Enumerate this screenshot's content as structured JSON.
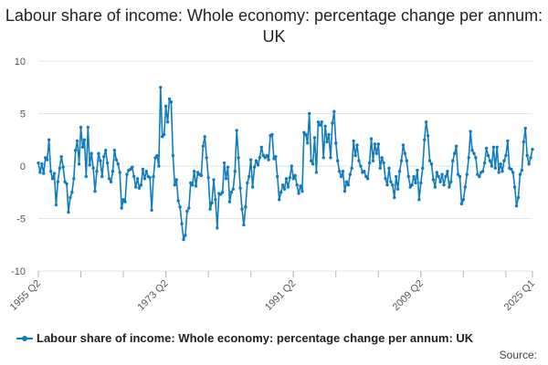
{
  "title": "Labour share of income: Whole economy: percentage change per annum: UK",
  "source_label": "Source:",
  "colors": {
    "series": "#0f7cbf",
    "grid": "#e4e4e4",
    "axis": "#555555"
  },
  "chart_data": {
    "type": "line",
    "title": "Labour share of income: Whole economy: percentage change per annum: UK",
    "xlabel": "",
    "ylabel": "",
    "ylim": [
      -10,
      10
    ],
    "yticks": [
      -10,
      -5,
      0,
      5,
      10
    ],
    "xlim": [
      "1955 Q2",
      "2025 Q1"
    ],
    "xticks": [
      "1955 Q2",
      "1973 Q2",
      "1991 Q2",
      "2009 Q2",
      "2025 Q1"
    ],
    "grid": true,
    "legend_position": "bottom",
    "series": [
      {
        "name": "Labour share of income: Whole economy: percentage change per annum: UK",
        "values_note": "quarterly values approximated from the chart",
        "points": [
          [
            "1955 Q2",
            0.3
          ],
          [
            "1955 Q3",
            -0.6
          ],
          [
            "1955 Q4",
            0.2
          ],
          [
            "1956 Q1",
            -0.7
          ],
          [
            "1956 Q2",
            0.8
          ],
          [
            "1956 Q3",
            0.6
          ],
          [
            "1956 Q4",
            2.5
          ],
          [
            "1957 Q1",
            -0.5
          ],
          [
            "1957 Q2",
            -1.2
          ],
          [
            "1957 Q3",
            -0.7
          ],
          [
            "1957 Q4",
            -3.7
          ],
          [
            "1958 Q1",
            -1.5
          ],
          [
            "1958 Q2",
            -0.2
          ],
          [
            "1958 Q3",
            0.9
          ],
          [
            "1958 Q4",
            -0.1
          ],
          [
            "1959 Q1",
            -1.5
          ],
          [
            "1959 Q2",
            -1.7
          ],
          [
            "1959 Q3",
            -4.4
          ],
          [
            "1959 Q4",
            -3.0
          ],
          [
            "1960 Q1",
            -2.5
          ],
          [
            "1960 Q2",
            -1.2
          ],
          [
            "1960 Q3",
            1.5
          ],
          [
            "1960 Q4",
            2.4
          ],
          [
            "1961 Q1",
            0.2
          ],
          [
            "1961 Q2",
            3.7
          ],
          [
            "1961 Q3",
            1.8
          ],
          [
            "1961 Q4",
            2.5
          ],
          [
            "1962 Q1",
            -1.0
          ],
          [
            "1962 Q2",
            3.7
          ],
          [
            "1962 Q3",
            0.1
          ],
          [
            "1962 Q4",
            1.2
          ],
          [
            "1963 Q1",
            -0.2
          ],
          [
            "1963 Q2",
            -2.4
          ],
          [
            "1963 Q3",
            -0.5
          ],
          [
            "1963 Q4",
            1.2
          ],
          [
            "1964 Q1",
            0.5
          ],
          [
            "1964 Q2",
            -1.0
          ],
          [
            "1964 Q3",
            0.9
          ],
          [
            "1964 Q4",
            1.5
          ],
          [
            "1965 Q1",
            0.3
          ],
          [
            "1965 Q2",
            -1.2
          ],
          [
            "1965 Q3",
            -1.5
          ],
          [
            "1965 Q4",
            -0.5
          ],
          [
            "1966 Q1",
            1.5
          ],
          [
            "1966 Q2",
            0.6
          ],
          [
            "1966 Q3",
            0.2
          ],
          [
            "1966 Q4",
            -0.6
          ],
          [
            "1967 Q1",
            -4.0
          ],
          [
            "1967 Q2",
            -3.2
          ],
          [
            "1967 Q3",
            -3.4
          ],
          [
            "1967 Q4",
            -0.8
          ],
          [
            "1968 Q1",
            -0.4
          ],
          [
            "1968 Q2",
            -0.3
          ],
          [
            "1968 Q3",
            -0.1
          ],
          [
            "1968 Q4",
            -1.0
          ],
          [
            "1969 Q1",
            -2.0
          ],
          [
            "1969 Q2",
            -1.2
          ],
          [
            "1969 Q3",
            -2.1
          ],
          [
            "1969 Q4",
            -1.8
          ],
          [
            "1970 Q1",
            -0.3
          ],
          [
            "1970 Q2",
            -1.2
          ],
          [
            "1970 Q3",
            -0.5
          ],
          [
            "1970 Q4",
            -1.0
          ],
          [
            "1971 Q1",
            -1.1
          ],
          [
            "1971 Q2",
            -4.2
          ],
          [
            "1971 Q3",
            -1.0
          ],
          [
            "1971 Q4",
            0.8
          ],
          [
            "1972 Q1",
            1.0
          ],
          [
            "1972 Q2",
            0.0
          ],
          [
            "1972 Q3",
            7.5
          ],
          [
            "1972 Q4",
            2.8
          ],
          [
            "1973 Q1",
            3.0
          ],
          [
            "1973 Q2",
            5.7
          ],
          [
            "1973 Q3",
            4.2
          ],
          [
            "1973 Q4",
            6.4
          ],
          [
            "1974 Q1",
            6.1
          ],
          [
            "1974 Q2",
            1.0
          ],
          [
            "1974 Q3",
            -1.8
          ],
          [
            "1974 Q4",
            -1.3
          ],
          [
            "1975 Q1",
            -3.3
          ],
          [
            "1975 Q2",
            -3.9
          ],
          [
            "1975 Q3",
            -5.5
          ],
          [
            "1975 Q4",
            -7.0
          ],
          [
            "1976 Q1",
            -6.6
          ],
          [
            "1976 Q2",
            -4.3
          ],
          [
            "1976 Q3",
            -4.0
          ],
          [
            "1976 Q4",
            -1.6
          ],
          [
            "1977 Q1",
            -1.8
          ],
          [
            "1977 Q2",
            -0.5
          ],
          [
            "1977 Q3",
            -1.9
          ],
          [
            "1977 Q4",
            -0.6
          ],
          [
            "1978 Q1",
            -0.8
          ],
          [
            "1978 Q2",
            -0.9
          ],
          [
            "1978 Q3",
            1.9
          ],
          [
            "1978 Q4",
            2.8
          ],
          [
            "1979 Q1",
            0.8
          ],
          [
            "1979 Q2",
            -1.1
          ],
          [
            "1979 Q3",
            -4.1
          ],
          [
            "1979 Q4",
            -3.5
          ],
          [
            "1980 Q1",
            -1.3
          ],
          [
            "1980 Q2",
            -3.2
          ],
          [
            "1980 Q3",
            -5.9
          ],
          [
            "1980 Q4",
            -2.6
          ],
          [
            "1981 Q1",
            -2.7
          ],
          [
            "1981 Q2",
            -2.5
          ],
          [
            "1981 Q3",
            0.3
          ],
          [
            "1981 Q4",
            -1.2
          ],
          [
            "1982 Q1",
            -0.1
          ],
          [
            "1982 Q2",
            -3.4
          ],
          [
            "1982 Q3",
            -2.5
          ],
          [
            "1982 Q4",
            -2.2
          ],
          [
            "1983 Q1",
            -0.5
          ],
          [
            "1983 Q2",
            3.4
          ],
          [
            "1983 Q3",
            0.8
          ],
          [
            "1983 Q4",
            -2.1
          ],
          [
            "1984 Q1",
            -4.1
          ],
          [
            "1984 Q2",
            -5.6
          ],
          [
            "1984 Q3",
            -3.9
          ],
          [
            "1984 Q4",
            -1.6
          ],
          [
            "1985 Q1",
            -1.0
          ],
          [
            "1985 Q2",
            0.6
          ],
          [
            "1985 Q3",
            -2.0
          ],
          [
            "1985 Q4",
            -0.1
          ],
          [
            "1986 Q1",
            0.5
          ],
          [
            "1986 Q2",
            0.1
          ],
          [
            "1986 Q3",
            0.8
          ],
          [
            "1986 Q4",
            1.8
          ],
          [
            "1987 Q1",
            1.0
          ],
          [
            "1987 Q2",
            0.8
          ],
          [
            "1987 Q3",
            1.0
          ],
          [
            "1987 Q4",
            0.6
          ],
          [
            "1988 Q1",
            2.9
          ],
          [
            "1988 Q2",
            3.0
          ],
          [
            "1988 Q3",
            0.7
          ],
          [
            "1988 Q4",
            0.9
          ],
          [
            "1989 Q1",
            -1.0
          ],
          [
            "1989 Q2",
            -3.2
          ],
          [
            "1989 Q3",
            -2.5
          ],
          [
            "1989 Q4",
            -1.8
          ],
          [
            "1990 Q1",
            -2.2
          ],
          [
            "1990 Q2",
            -1.2
          ],
          [
            "1990 Q3",
            -2.0
          ],
          [
            "1990 Q4",
            -1.1
          ],
          [
            "1991 Q1",
            0.0
          ],
          [
            "1991 Q2",
            -1.2
          ],
          [
            "1991 Q3",
            -0.9
          ],
          [
            "1991 Q4",
            -1.8
          ],
          [
            "1992 Q1",
            -2.6
          ],
          [
            "1992 Q2",
            -1.9
          ],
          [
            "1992 Q3",
            -2.4
          ],
          [
            "1992 Q4",
            3.2
          ],
          [
            "1993 Q1",
            3.0
          ],
          [
            "1993 Q2",
            2.2
          ],
          [
            "1993 Q3",
            5.0
          ],
          [
            "1993 Q4",
            0.5
          ],
          [
            "1994 Q1",
            0.2
          ],
          [
            "1994 Q2",
            2.7
          ],
          [
            "1994 Q3",
            -0.6
          ],
          [
            "1994 Q4",
            4.2
          ],
          [
            "1995 Q1",
            3.9
          ],
          [
            "1995 Q2",
            4.2
          ],
          [
            "1995 Q3",
            0.8
          ],
          [
            "1995 Q4",
            3.8
          ],
          [
            "1996 Q1",
            2.3
          ],
          [
            "1996 Q2",
            3.0
          ],
          [
            "1996 Q3",
            0.8
          ],
          [
            "1996 Q4",
            4.1
          ],
          [
            "1997 Q1",
            5.2
          ],
          [
            "1997 Q2",
            2.2
          ],
          [
            "1997 Q3",
            0.5
          ],
          [
            "1997 Q4",
            -0.5
          ],
          [
            "1998 Q1",
            -1.0
          ],
          [
            "1998 Q2",
            -0.5
          ],
          [
            "1998 Q3",
            -2.4
          ],
          [
            "1998 Q4",
            -1.5
          ],
          [
            "1999 Q1",
            -1.8
          ],
          [
            "1999 Q2",
            -0.8
          ],
          [
            "1999 Q3",
            -0.2
          ],
          [
            "1999 Q4",
            2.4
          ],
          [
            "2000 Q1",
            1.0
          ],
          [
            "2000 Q2",
            2.0
          ],
          [
            "2000 Q3",
            0.5
          ],
          [
            "2000 Q4",
            0.0
          ],
          [
            "2001 Q1",
            -0.6
          ],
          [
            "2001 Q2",
            -0.5
          ],
          [
            "2001 Q3",
            -1.0
          ],
          [
            "2001 Q4",
            -1.2
          ],
          [
            "2002 Q1",
            0.3
          ],
          [
            "2002 Q2",
            2.6
          ],
          [
            "2002 Q3",
            0.5
          ],
          [
            "2002 Q4",
            2.1
          ],
          [
            "2003 Q1",
            1.2
          ],
          [
            "2003 Q2",
            2.1
          ],
          [
            "2003 Q3",
            -0.2
          ],
          [
            "2003 Q4",
            0.8
          ],
          [
            "2004 Q1",
            0.3
          ],
          [
            "2004 Q2",
            -1.2
          ],
          [
            "2004 Q3",
            -1.8
          ],
          [
            "2004 Q4",
            -0.2
          ],
          [
            "2005 Q1",
            -1.5
          ],
          [
            "2005 Q2",
            -1.8
          ],
          [
            "2005 Q3",
            -3.0
          ],
          [
            "2005 Q4",
            -1.0
          ],
          [
            "2006 Q1",
            -2.2
          ],
          [
            "2006 Q2",
            -0.5
          ],
          [
            "2006 Q3",
            0.5
          ],
          [
            "2006 Q4",
            2.0
          ],
          [
            "2007 Q1",
            1.2
          ],
          [
            "2007 Q2",
            0.5
          ],
          [
            "2007 Q3",
            -1.0
          ],
          [
            "2007 Q4",
            -2.0
          ],
          [
            "2008 Q1",
            -1.8
          ],
          [
            "2008 Q2",
            -1.0
          ],
          [
            "2008 Q3",
            -1.6
          ],
          [
            "2008 Q4",
            -0.4
          ],
          [
            "2009 Q1",
            -3.2
          ],
          [
            "2009 Q2",
            -1.6
          ],
          [
            "2009 Q3",
            -0.2
          ],
          [
            "2009 Q4",
            2.5
          ],
          [
            "2010 Q1",
            4.2
          ],
          [
            "2010 Q2",
            2.9
          ],
          [
            "2010 Q3",
            0.5
          ],
          [
            "2010 Q4",
            0.2
          ],
          [
            "2011 Q1",
            -1.3
          ],
          [
            "2011 Q2",
            -2.0
          ],
          [
            "2011 Q3",
            -0.6
          ],
          [
            "2011 Q4",
            -1.0
          ],
          [
            "2012 Q1",
            -1.5
          ],
          [
            "2012 Q2",
            -0.8
          ],
          [
            "2012 Q3",
            -1.8
          ],
          [
            "2012 Q4",
            -1.0
          ],
          [
            "2013 Q1",
            -0.5
          ],
          [
            "2013 Q2",
            -2.0
          ],
          [
            "2013 Q3",
            -1.5
          ],
          [
            "2013 Q4",
            0.5
          ],
          [
            "2014 Q1",
            1.2
          ],
          [
            "2014 Q2",
            1.9
          ],
          [
            "2014 Q3",
            -0.8
          ],
          [
            "2014 Q4",
            -1.0
          ],
          [
            "2015 Q1",
            -3.6
          ],
          [
            "2015 Q2",
            -3.2
          ],
          [
            "2015 Q3",
            -2.0
          ],
          [
            "2015 Q4",
            -0.8
          ],
          [
            "2016 Q1",
            0.8
          ],
          [
            "2016 Q2",
            3.3
          ],
          [
            "2016 Q3",
            1.5
          ],
          [
            "2016 Q4",
            1.2
          ],
          [
            "2017 Q1",
            0.8
          ],
          [
            "2017 Q2",
            -0.8
          ],
          [
            "2017 Q3",
            -1.0
          ],
          [
            "2017 Q4",
            -0.6
          ],
          [
            "2018 Q1",
            -0.5
          ],
          [
            "2018 Q2",
            0.3
          ],
          [
            "2018 Q3",
            1.7
          ],
          [
            "2018 Q4",
            1.0
          ],
          [
            "2019 Q1",
            0.5
          ],
          [
            "2019 Q2",
            0.0
          ],
          [
            "2019 Q3",
            1.8
          ],
          [
            "2019 Q4",
            -0.2
          ],
          [
            "2020 Q1",
            1.8
          ],
          [
            "2020 Q2",
            -0.6
          ],
          [
            "2020 Q3",
            0.2
          ],
          [
            "2020 Q4",
            -0.5
          ],
          [
            "2021 Q1",
            0.5
          ],
          [
            "2021 Q2",
            1.0
          ],
          [
            "2021 Q3",
            2.4
          ],
          [
            "2021 Q4",
            -0.2
          ],
          [
            "2022 Q1",
            -0.3
          ],
          [
            "2022 Q2",
            -0.6
          ],
          [
            "2022 Q3",
            -2.0
          ],
          [
            "2022 Q4",
            -3.8
          ],
          [
            "2023 Q1",
            -3.0
          ],
          [
            "2023 Q2",
            -0.8
          ],
          [
            "2023 Q3",
            -0.4
          ],
          [
            "2023 Q4",
            2.3
          ],
          [
            "2024 Q1",
            3.6
          ],
          [
            "2024 Q2",
            1.0
          ],
          [
            "2024 Q3",
            0.2
          ],
          [
            "2024 Q4",
            0.8
          ],
          [
            "2025 Q1",
            1.6
          ]
        ]
      }
    ]
  }
}
